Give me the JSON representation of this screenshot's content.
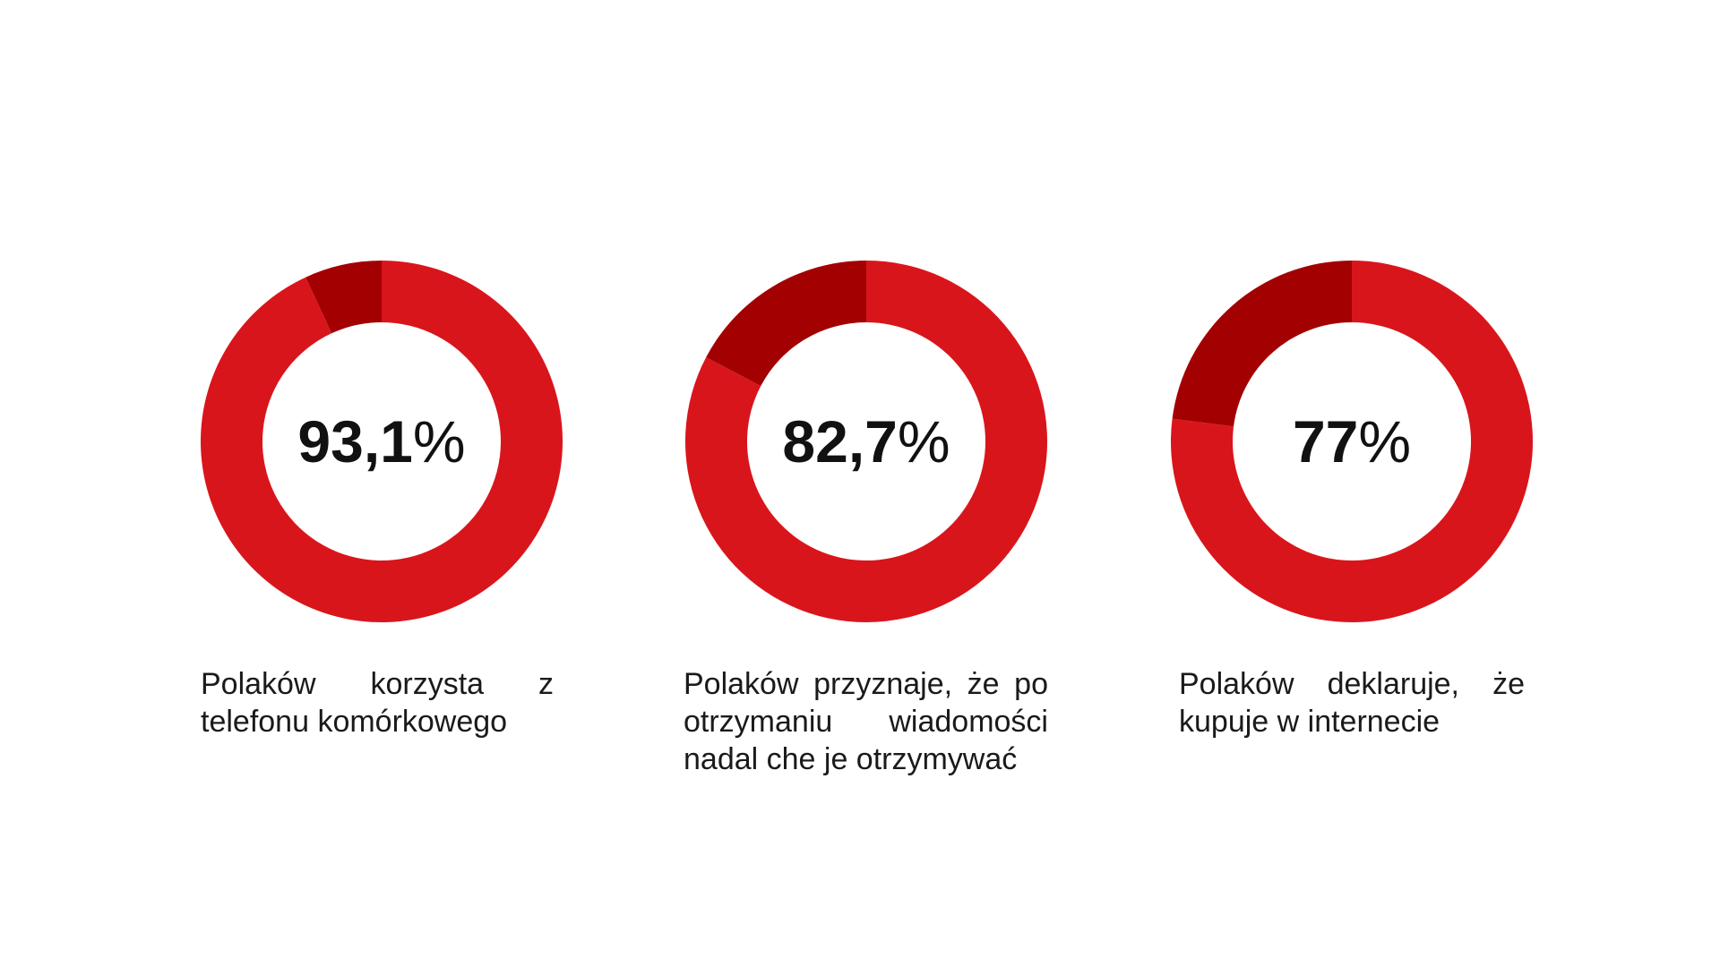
{
  "colors": {
    "main": "#d9151c",
    "remainder": "#a30002",
    "text": "#111111",
    "background": "#ffffff"
  },
  "chart_data": [
    {
      "type": "pie",
      "style": "donut",
      "values": [
        93.1,
        6.9
      ],
      "center_value": "93,1",
      "center_unit": "%",
      "caption": "Polaków korzysta z telefonu komórkowego"
    },
    {
      "type": "pie",
      "style": "donut",
      "values": [
        82.7,
        17.3
      ],
      "center_value": "82,7",
      "center_unit": "%",
      "caption": "Polaków przyznaje, że po otrzymaniu wiadomości nadal che je otrzymywać"
    },
    {
      "type": "pie",
      "style": "donut",
      "values": [
        77,
        23
      ],
      "center_value": "77",
      "center_unit": "%",
      "caption": "Polaków deklaruje, że kupuje w internecie"
    }
  ]
}
